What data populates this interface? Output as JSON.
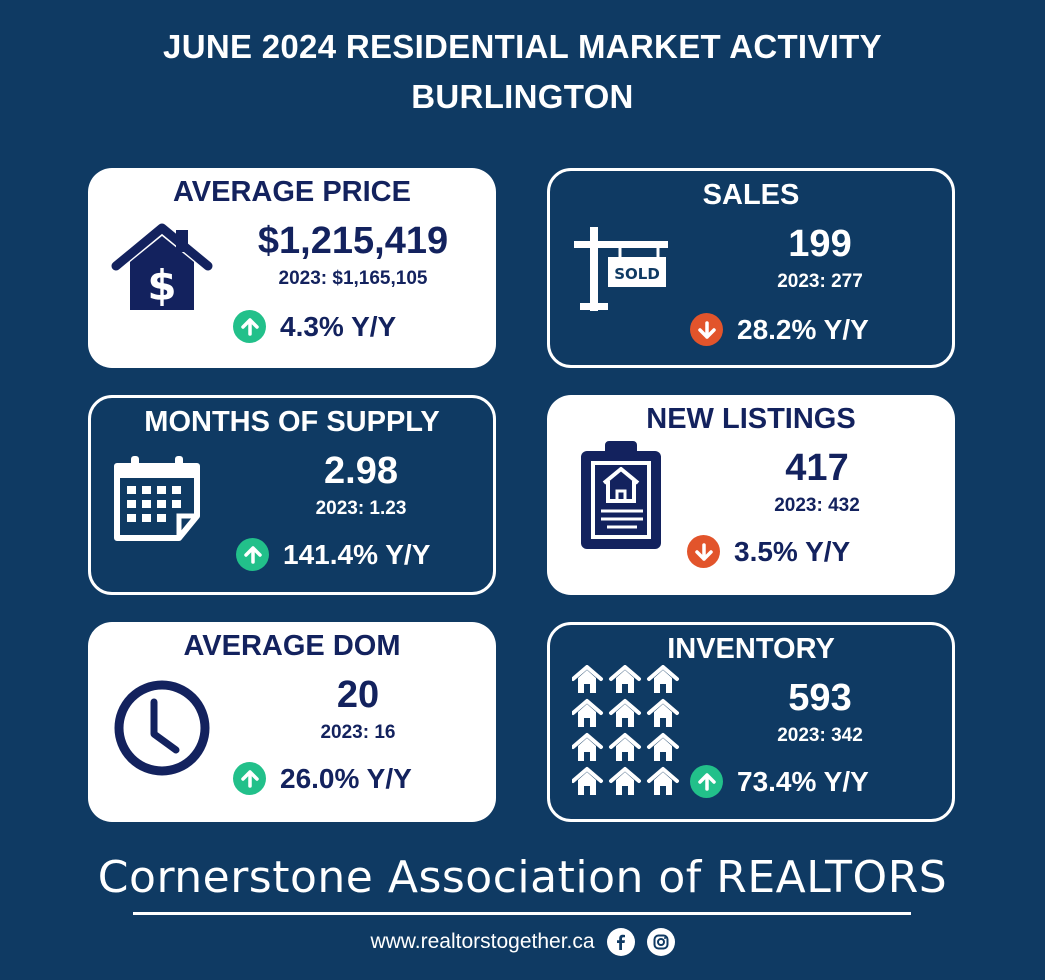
{
  "header": {
    "title_line1": "JUNE 2024 RESIDENTIAL MARKET ACTIVITY",
    "title_line2": "BURLINGTON"
  },
  "colors": {
    "background": "#0f3a63",
    "card_light": "#ffffff",
    "text_dark": "#13225e",
    "up": "#22c08a",
    "down": "#e2542b"
  },
  "cards": [
    {
      "title": "AVERAGE PRICE",
      "value": "$1,215,419",
      "previous": "2023: $1,165,105",
      "change": "4.3% Y/Y",
      "direction": "up",
      "icon": "house-dollar-icon"
    },
    {
      "title": "SALES",
      "value": "199",
      "previous": "2023: 277",
      "change": "28.2% Y/Y",
      "direction": "down",
      "icon": "sold-sign-icon",
      "sign_text": "SOLD"
    },
    {
      "title": "MONTHS OF SUPPLY",
      "value": "2.98",
      "previous": "2023: 1.23",
      "change": "141.4% Y/Y",
      "direction": "up",
      "icon": "calendar-icon"
    },
    {
      "title": "NEW LISTINGS",
      "value": "417",
      "previous": "2023: 432",
      "change": "3.5% Y/Y",
      "direction": "down",
      "icon": "clipboard-house-icon"
    },
    {
      "title": "AVERAGE DOM",
      "value": "20",
      "previous": "2023: 16",
      "change": "26.0% Y/Y",
      "direction": "up",
      "icon": "clock-icon"
    },
    {
      "title": "INVENTORY",
      "value": "593",
      "previous": "2023: 342",
      "change": "73.4% Y/Y",
      "direction": "up",
      "icon": "houses-grid-icon"
    }
  ],
  "footer": {
    "organization": "Cornerstone Association of REALTORS",
    "website": "www.realtorstogether.ca",
    "social_icons": [
      "facebook-icon",
      "instagram-icon"
    ]
  }
}
